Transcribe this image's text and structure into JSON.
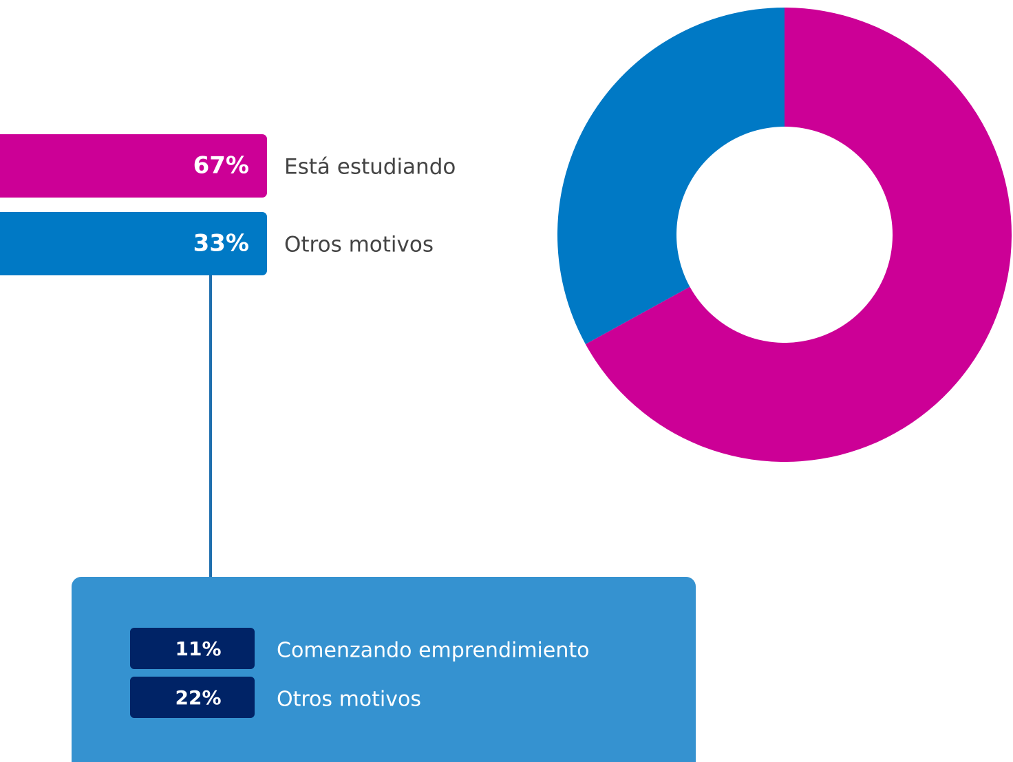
{
  "chart_data": {
    "type": "donut",
    "categories": [
      "Está estudiando",
      "Otros motivos"
    ],
    "values": [
      67,
      33
    ],
    "value_labels": [
      "67%",
      "33%"
    ],
    "colors": [
      "#cc0096",
      "#0079c5"
    ]
  },
  "breakdown": {
    "categories": [
      "Comenzando emprendimiento",
      "Otros motivos"
    ],
    "value_labels": [
      "11%",
      "22%"
    ],
    "color": "#002366",
    "panel_color": "#3592d0"
  }
}
